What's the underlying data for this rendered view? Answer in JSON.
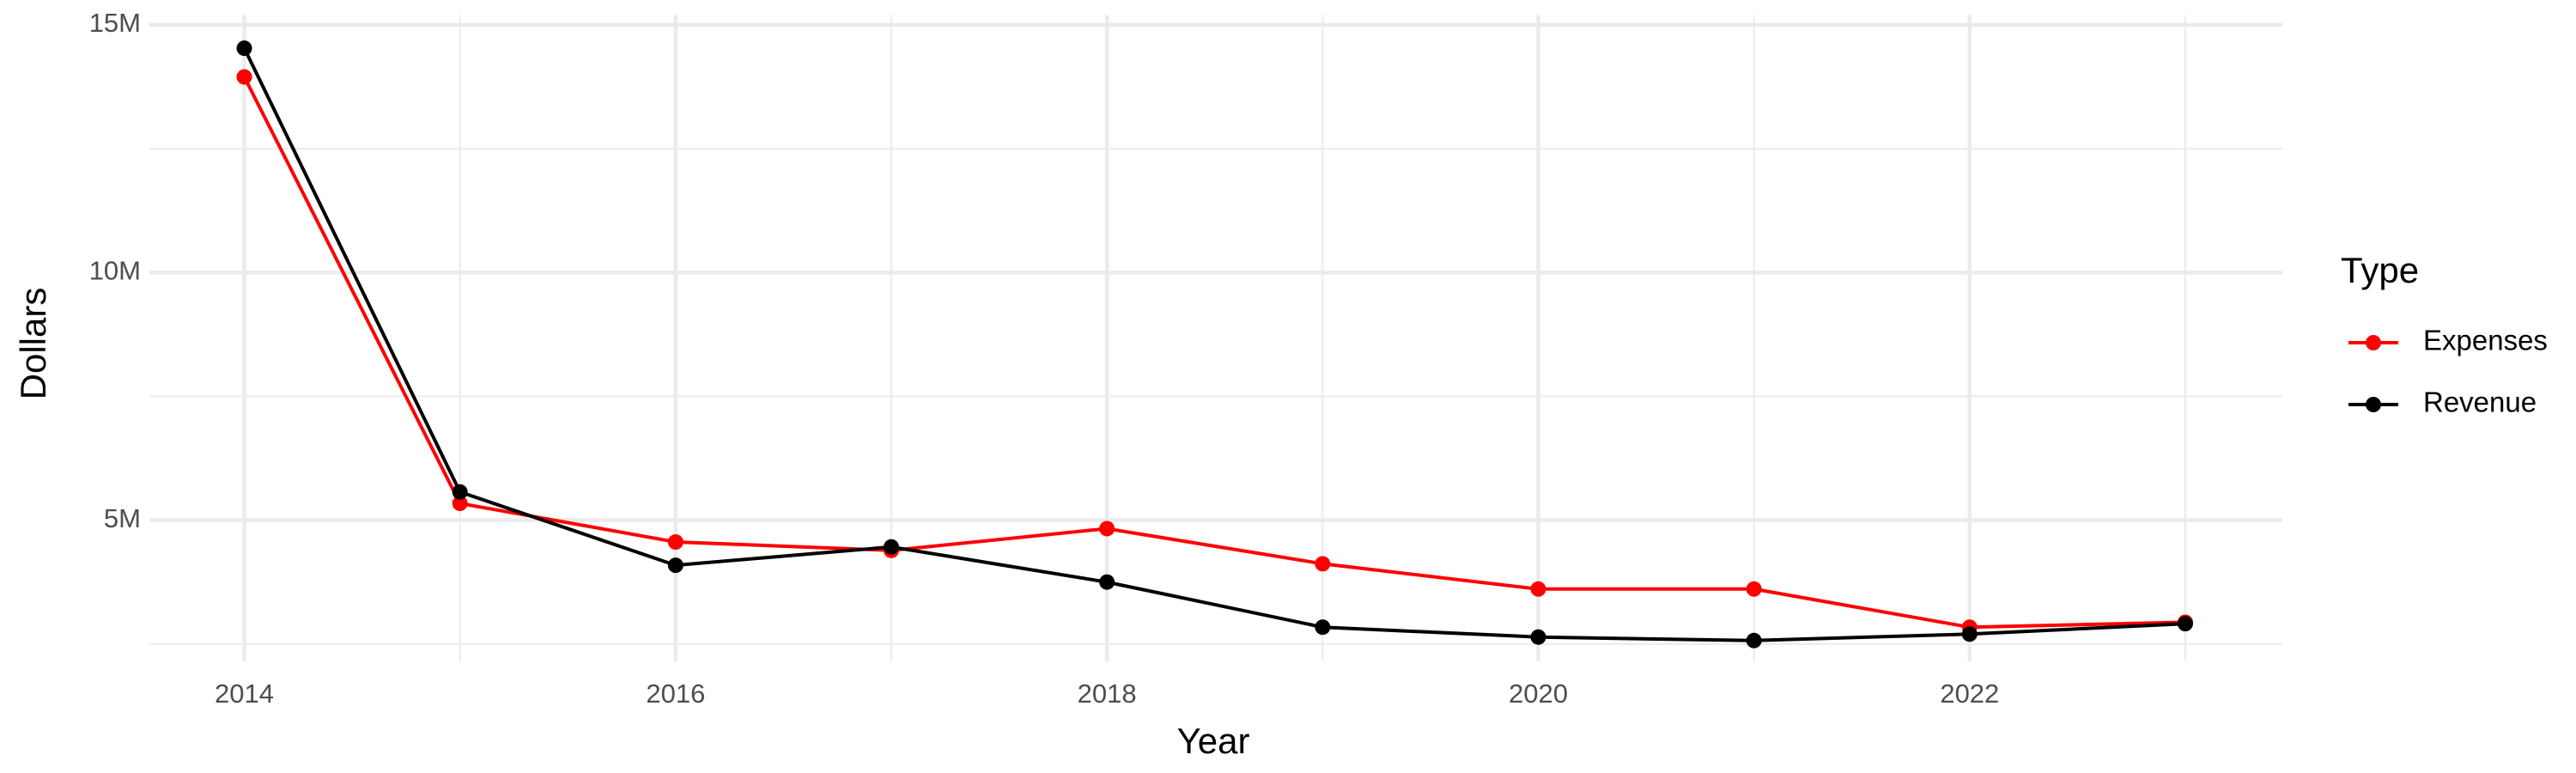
{
  "chart_data": {
    "type": "line",
    "x": [
      2014,
      2015,
      2016,
      2017,
      2018,
      2019,
      2020,
      2021,
      2022,
      2023
    ],
    "series": [
      {
        "name": "Expenses",
        "color": "#ff0000",
        "values": [
          13950000,
          5340000,
          4560000,
          4390000,
          4830000,
          4120000,
          3610000,
          3610000,
          2840000,
          2940000
        ]
      },
      {
        "name": "Revenue",
        "color": "#000000",
        "values": [
          14530000,
          5570000,
          4090000,
          4460000,
          3750000,
          2840000,
          2640000,
          2570000,
          2700000,
          2910000
        ]
      }
    ],
    "x_label": "Year",
    "y_label": "Dollars",
    "legend_title": "Type",
    "xlim": [
      2013.56,
      2023.45
    ],
    "xticks": [
      2014,
      2016,
      2018,
      2020,
      2022
    ],
    "ylim": [
      2150000,
      15200000
    ],
    "yticks": [
      {
        "value": 5000000,
        "label": "5M"
      },
      {
        "value": 10000000,
        "label": "10M"
      },
      {
        "value": 15000000,
        "label": "15M"
      }
    ],
    "grid": true,
    "legend": "right"
  }
}
